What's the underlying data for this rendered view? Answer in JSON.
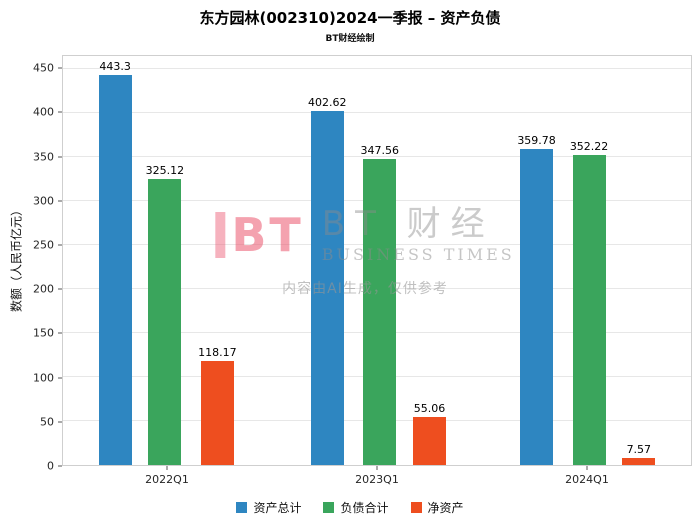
{
  "title": "东方园林(002310)2024一季报 – 资产负债",
  "subtitle": "BT财经绘制",
  "watermark": {
    "logo_text": "BT",
    "brand_cn": "BT 财经",
    "brand_en": "BUSINESS TIMES",
    "notice": "内容由AI生成，仅供参考"
  },
  "chart_data": {
    "type": "bar",
    "categories": [
      "2022Q1",
      "2023Q1",
      "2024Q1"
    ],
    "series": [
      {
        "name": "资产总计",
        "color": "#2e86c1",
        "values": [
          443.3,
          402.62,
          359.78
        ]
      },
      {
        "name": "负债合计",
        "color": "#3aa55c",
        "values": [
          325.12,
          347.56,
          352.22
        ]
      },
      {
        "name": "净资产",
        "color": "#ee4e1f",
        "values": [
          118.17,
          55.06,
          7.57
        ]
      }
    ],
    "title": "东方园林(002310)2024一季报 – 资产负债",
    "xlabel": "",
    "ylabel": "数额（人民币亿元）",
    "ylim": [
      0,
      465
    ],
    "yticks": [
      0,
      50,
      100,
      150,
      200,
      250,
      300,
      350,
      400,
      450
    ],
    "grid": true,
    "legend_position": "bottom"
  }
}
